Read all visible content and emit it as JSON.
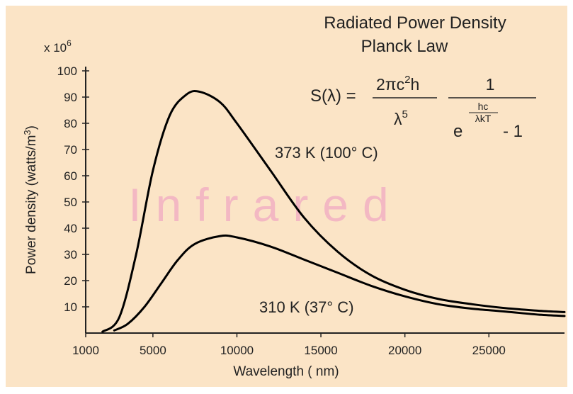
{
  "chart_data": {
    "type": "line",
    "title": "Radiated Power Density",
    "subtitle": "Planck Law",
    "xlabel": "Wavelength ( nm)",
    "ylabel_parts": [
      "Power density (watts/m",
      "3",
      ")"
    ],
    "y_multiplier_parts": [
      "x 10",
      "6"
    ],
    "x_ticks": [
      "1000",
      "5000",
      "10000",
      "15000",
      "20000",
      "25000"
    ],
    "x_tick_values": [
      1000,
      5000,
      10000,
      15000,
      20000,
      25000
    ],
    "y_ticks": [
      "10",
      "20",
      "30",
      "40",
      "50",
      "60",
      "70",
      "80",
      "90",
      "100"
    ],
    "y_tick_values": [
      10,
      20,
      30,
      40,
      50,
      60,
      70,
      80,
      90,
      100
    ],
    "xlim": [
      1000,
      29500
    ],
    "ylim": [
      0,
      100
    ],
    "grid": false,
    "watermark": "Infrared",
    "formula": {
      "lhs": "S(λ) =",
      "num1": "2πc",
      "num1_sup1": "2",
      "num1_tail": "h",
      "den1": "λ",
      "den1_sup": "5",
      "num2": "1",
      "den2_base": "e",
      "den2_exp_num": "hc",
      "den2_exp_den": "λkT",
      "den2_tail": "- 1"
    },
    "series": [
      {
        "name": "373 K (100° C)",
        "color": "#000000",
        "points": [
          [
            2000,
            0.5
          ],
          [
            3000,
            6
          ],
          [
            4000,
            30
          ],
          [
            5000,
            62
          ],
          [
            6000,
            83
          ],
          [
            7000,
            91
          ],
          [
            7800,
            92
          ],
          [
            9000,
            88
          ],
          [
            10000,
            80
          ],
          [
            12000,
            62
          ],
          [
            14000,
            44
          ],
          [
            16000,
            31
          ],
          [
            18000,
            22
          ],
          [
            20000,
            16.5
          ],
          [
            22000,
            13
          ],
          [
            24000,
            11
          ],
          [
            26000,
            9.5
          ],
          [
            28000,
            8.5
          ],
          [
            29500,
            8
          ]
        ]
      },
      {
        "name": "310 K (37° C)",
        "color": "#000000",
        "points": [
          [
            2700,
            1
          ],
          [
            3500,
            3.5
          ],
          [
            4500,
            10
          ],
          [
            5500,
            19
          ],
          [
            6500,
            28
          ],
          [
            7500,
            34
          ],
          [
            9000,
            37
          ],
          [
            10000,
            36.5
          ],
          [
            12000,
            33
          ],
          [
            14000,
            28
          ],
          [
            16000,
            23
          ],
          [
            18000,
            18
          ],
          [
            20000,
            14
          ],
          [
            22000,
            11
          ],
          [
            24000,
            9.3
          ],
          [
            26000,
            8.2
          ],
          [
            28000,
            7
          ],
          [
            29500,
            6.5
          ]
        ]
      }
    ]
  }
}
